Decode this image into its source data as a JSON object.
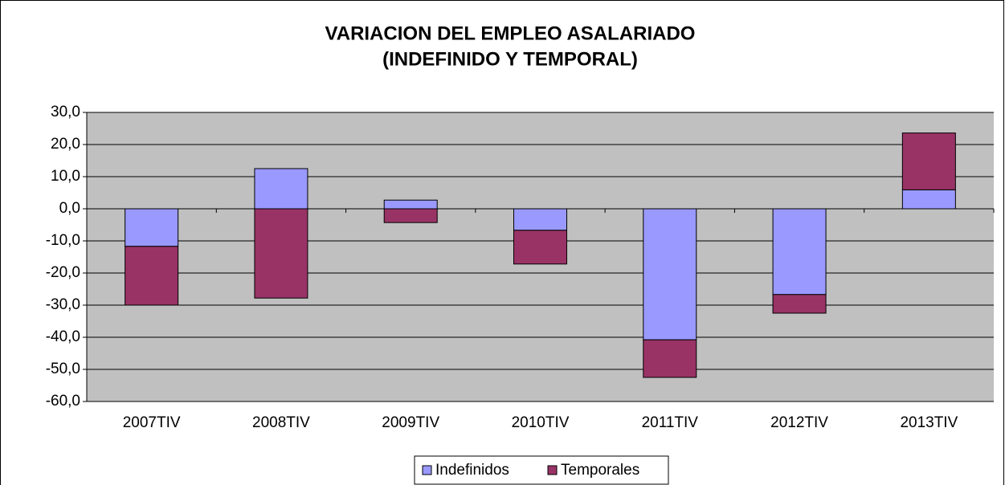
{
  "chart_data": {
    "type": "bar",
    "stacked": true,
    "title": [
      "VARIACION DEL EMPLEO ASALARIADO",
      "(INDEFINIDO Y TEMPORAL)"
    ],
    "categories": [
      "2007TIV",
      "2008TIV",
      "2009TIV",
      "2010TIV",
      "2011TIV",
      "2012TIV",
      "2013TIV"
    ],
    "series": [
      {
        "name": "Indefinidos",
        "color": "#9999ff",
        "values": [
          -11.7,
          12.5,
          2.7,
          -6.7,
          -40.8,
          -26.7,
          5.9
        ]
      },
      {
        "name": "Temporales",
        "color": "#993366",
        "values": [
          -18.3,
          -27.8,
          -4.3,
          -10.5,
          -11.7,
          -5.8,
          17.7
        ]
      }
    ],
    "ylim": [
      -60,
      30
    ],
    "yticks": [
      {
        "value": -60,
        "label": "-60,0"
      },
      {
        "value": -50,
        "label": "-50,0"
      },
      {
        "value": -40,
        "label": "-40,0"
      },
      {
        "value": -30,
        "label": "-30,0"
      },
      {
        "value": -20,
        "label": "-20,0"
      },
      {
        "value": -10,
        "label": "-10,0"
      },
      {
        "value": 0,
        "label": "0,0"
      },
      {
        "value": 10,
        "label": "10,0"
      },
      {
        "value": 20,
        "label": "20,0"
      },
      {
        "value": 30,
        "label": "30,0"
      }
    ],
    "grid": true,
    "legend": "bottom"
  }
}
